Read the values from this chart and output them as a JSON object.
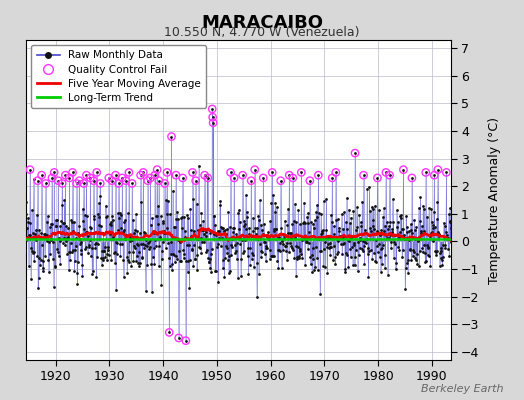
{
  "title": "MARACAIBO",
  "subtitle": "10.550 N, 4.770 W (Venezuela)",
  "ylabel": "Temperature Anomaly (°C)",
  "attribution": "Berkeley Earth",
  "xlim": [
    1914.5,
    1993.5
  ],
  "ylim": [
    -4.3,
    7.3
  ],
  "yticks": [
    -4,
    -3,
    -2,
    -1,
    0,
    1,
    2,
    3,
    4,
    5,
    6,
    7
  ],
  "xticks": [
    1920,
    1930,
    1940,
    1950,
    1960,
    1970,
    1980,
    1990
  ],
  "bg_color": "#d8d8d8",
  "plot_bg_color": "#ffffff",
  "raw_line_color": "#4444cc",
  "raw_marker_color": "#111111",
  "qc_fail_color": "#ff33ff",
  "moving_avg_color": "#ee0000",
  "trend_color": "#00cc00",
  "seed": 12345
}
